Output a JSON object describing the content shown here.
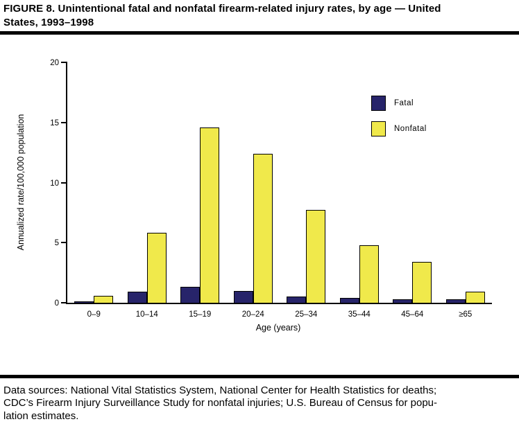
{
  "title": "FIGURE 8. Unintentional fatal and nonfatal firearm-related injury rates, by age — United\nStates, 1993–1998",
  "footer": {
    "text": "Data sources: National Vital Statistics System, National Center for Health Statistics for deaths;\nCDC’s Firearm Injury Surveillance Study for nonfatal injuries; U.S. Bureau of Census for popu-\nlation estimates."
  },
  "chart_data": {
    "type": "bar",
    "title": "Unintentional fatal and nonfatal firearm-related injury rates, by age — United States, 1993–1998",
    "categories": [
      "0–9",
      "10–14",
      "15–19",
      "20–24",
      "25–34",
      "35–44",
      "45–64",
      "≥65"
    ],
    "series": [
      {
        "name": "Fatal",
        "color": "#27246a",
        "values": [
          0.1,
          0.9,
          1.3,
          1.0,
          0.5,
          0.4,
          0.3,
          0.3
        ]
      },
      {
        "name": "Nonfatal",
        "color": "#f0e94b",
        "values": [
          0.6,
          5.8,
          14.6,
          12.4,
          7.7,
          4.8,
          3.4,
          0.9
        ]
      }
    ],
    "xlabel": "Age (years)",
    "ylabel": "Annualized rate/100,000 population",
    "ylim": [
      0,
      20
    ],
    "yticks": [
      0,
      5,
      10,
      15,
      20
    ],
    "grid": false,
    "legend_position": "inside-top-right"
  }
}
